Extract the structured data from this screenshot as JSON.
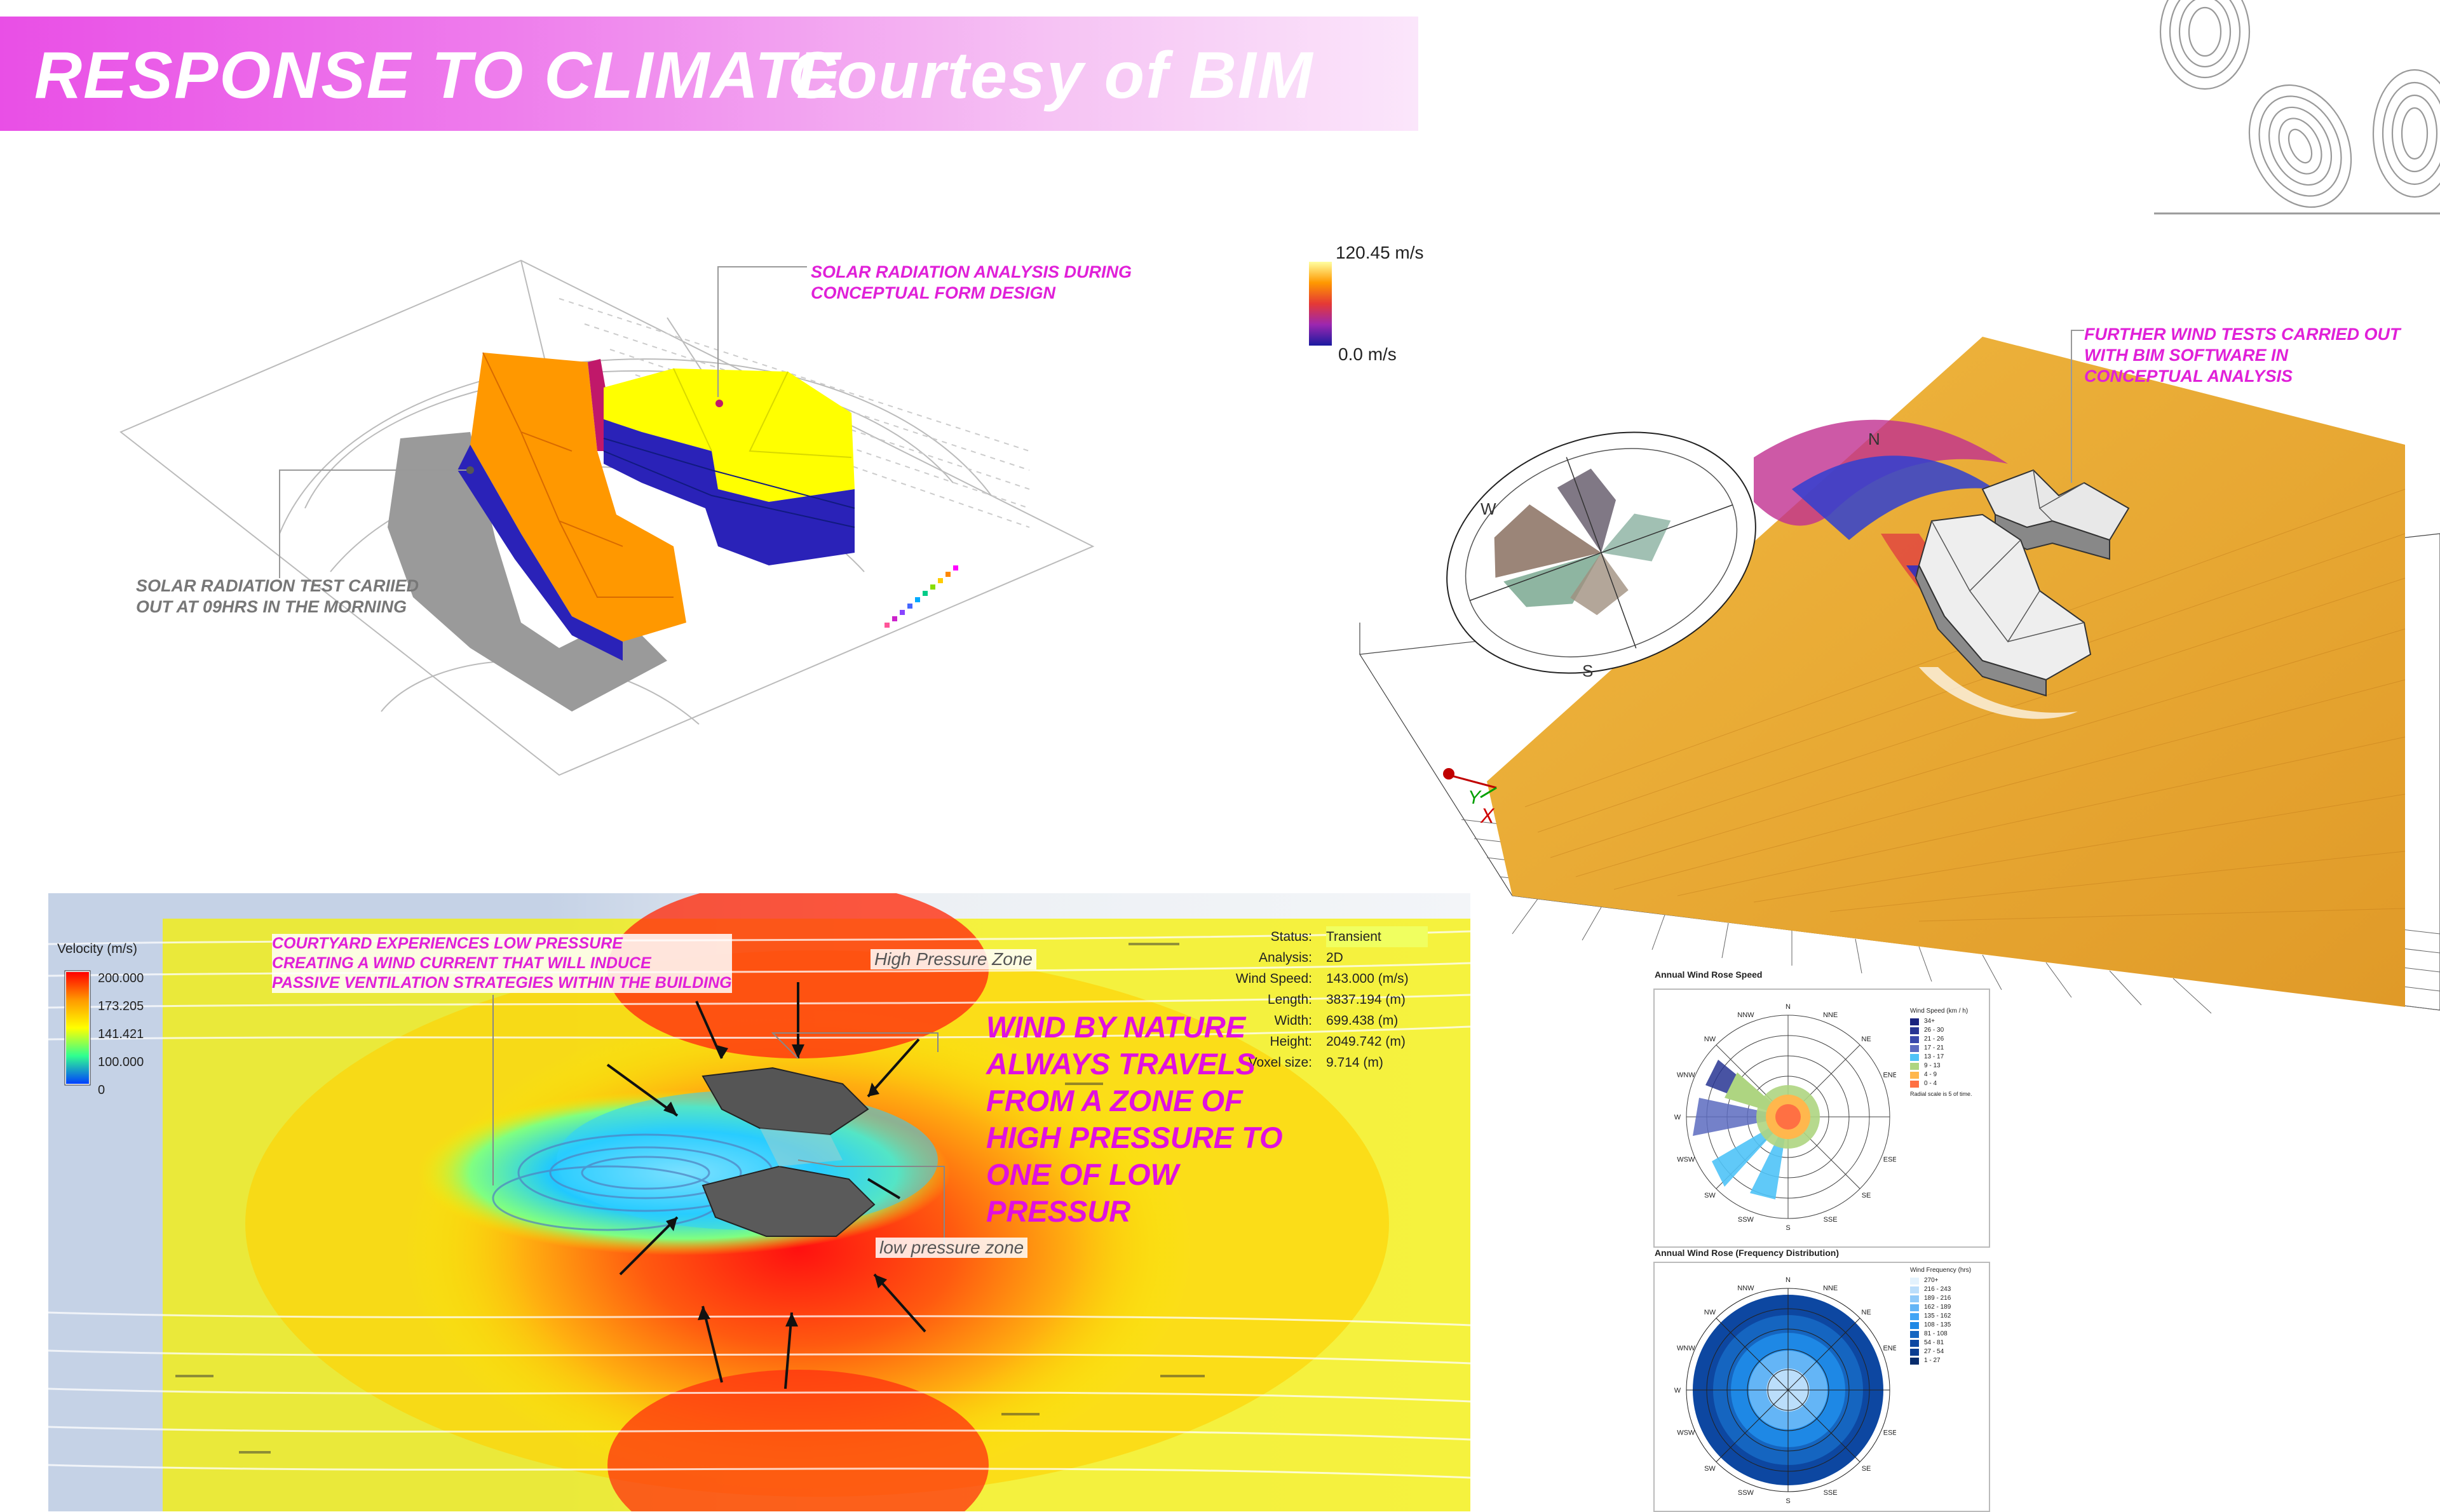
{
  "banner": {
    "title": "RESPONSE TO CLIMATE",
    "subtitle": "Courtesy of BIM"
  },
  "solar": {
    "note_top": [
      "SOLAR RADIATION ANALYSIS DURING",
      "CONCEPTUAL FORM DESIGN"
    ],
    "note_left": [
      "SOLAR RADIATION TEST CARIIED",
      "OUT AT 09HRS IN THE MORNING"
    ]
  },
  "wind3d": {
    "scale_max": "120.45 m/s",
    "scale_min": "0.0 m/s",
    "note": [
      "FURTHER WIND TESTS CARRIED OUT",
      "WITH  BIM SOFTWARE IN",
      "CONCEPTUAL ANALYSIS"
    ],
    "compass": {
      "n": "N",
      "w": "W",
      "s": "S"
    },
    "axis": {
      "x": "X",
      "y": "Y"
    }
  },
  "cfd": {
    "legend_title": "Velocity (m/s)",
    "legend_ticks": [
      "200.000",
      "173.205",
      "141.421",
      "100.000",
      "0"
    ],
    "note_courtyard": [
      "COURTYARD EXPERIENCES LOW PRESSURE",
      "CREATING A WIND CURRENT THAT WILL INDUCE",
      "PASSIVE VENTILATION STRATEGIES WITHIN THE BUILDING"
    ],
    "label_high": "High Pressure  Zone",
    "label_low": "low pressure zone",
    "stats": [
      {
        "k": "Status:",
        "v": "Transient"
      },
      {
        "k": "Analysis:",
        "v": "2D"
      },
      {
        "k": "Wind Speed:",
        "v": "143.000 (m/s)"
      },
      {
        "k": "Length:",
        "v": "3837.194 (m)"
      },
      {
        "k": "Width:",
        "v": "699.438 (m)"
      },
      {
        "k": "Height:",
        "v": "2049.742 (m)"
      },
      {
        "k": "Voxel size:",
        "v": "9.714 (m)"
      }
    ],
    "statement": [
      "WIND BY NATURE",
      "ALWAYS TRAVELS",
      "FROM A ZONE OF",
      "HIGH PRESSURE TO",
      "ONE OF LOW",
      "PRESSUR"
    ]
  },
  "rose_speed": {
    "title": "Annual Wind Rose Speed",
    "directions": [
      "N",
      "NNE",
      "NE",
      "ENE",
      "E",
      "ESE",
      "SE",
      "SSE",
      "S",
      "SSW",
      "SW",
      "WSW",
      "W",
      "WNW",
      "NW",
      "NNW"
    ],
    "legend_title": "Wind Speed (km / h)",
    "legend": [
      {
        "label": "34+",
        "color": "#1a237e"
      },
      {
        "label": "26 - 30",
        "color": "#283593"
      },
      {
        "label": "21 - 26",
        "color": "#3949ab"
      },
      {
        "label": "17 - 21",
        "color": "#5c6bc0"
      },
      {
        "label": "13 - 17",
        "color": "#4fc3f7"
      },
      {
        "label": "9 - 13",
        "color": "#aed581"
      },
      {
        "label": "4 - 9",
        "color": "#ffb74d"
      },
      {
        "label": "0 - 4",
        "color": "#ff7043"
      }
    ],
    "note": "Radial scale is 5 of time."
  },
  "rose_freq": {
    "title": "Annual Wind Rose (Frequency Distribution)",
    "directions": [
      "N",
      "NNE",
      "NE",
      "ENE",
      "E",
      "ESE",
      "SE",
      "SSE",
      "S",
      "SSW",
      "SW",
      "WSW",
      "W",
      "WNW",
      "NW",
      "NNW"
    ],
    "legend_title": "Wind Frequency (hrs)",
    "legend": [
      {
        "label": "270+",
        "color": "#e3f2fd"
      },
      {
        "label": "216 - 243",
        "color": "#bbdefb"
      },
      {
        "label": "189 - 216",
        "color": "#90caf9"
      },
      {
        "label": "162 - 189",
        "color": "#64b5f6"
      },
      {
        "label": "135 - 162",
        "color": "#42a5f5"
      },
      {
        "label": "108 - 135",
        "color": "#1e88e5"
      },
      {
        "label": "81 - 108",
        "color": "#1565c0"
      },
      {
        "label": "54 - 81",
        "color": "#0d47a1"
      },
      {
        "label": "27 - 54",
        "color": "#0b3d91"
      },
      {
        "label": "1 - 27",
        "color": "#082c6c"
      }
    ]
  },
  "colors": {
    "banner": "#e94fe6",
    "accent": "#e020d8",
    "orange": "#ff9800",
    "yellow": "#ffff00",
    "blue": "#2020c0",
    "sand": "#e8a830"
  }
}
